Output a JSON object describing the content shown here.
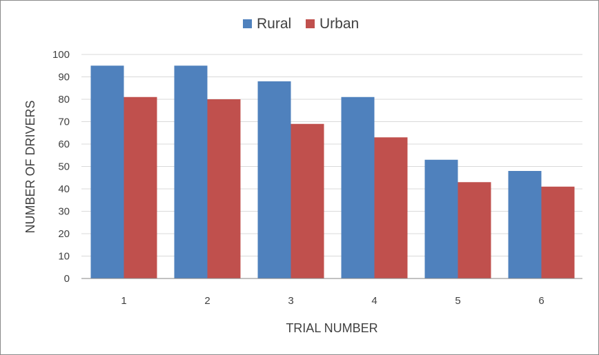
{
  "chart_data": {
    "type": "bar",
    "categories": [
      "1",
      "2",
      "3",
      "4",
      "5",
      "6"
    ],
    "series": [
      {
        "name": "Rural",
        "values": [
          95,
          95,
          88,
          81,
          53,
          48
        ],
        "color": "#4F81BD"
      },
      {
        "name": "Urban",
        "values": [
          81,
          80,
          69,
          63,
          43,
          41
        ],
        "color": "#C0504D"
      }
    ],
    "y_ticks": [
      "0",
      "10",
      "20",
      "30",
      "40",
      "50",
      "60",
      "70",
      "80",
      "90",
      "100"
    ],
    "xlabel": "TRIAL NUMBER",
    "ylabel": "NUMBER OF DRIVERS",
    "ylim": [
      0,
      100
    ],
    "grid": true,
    "legend_position": "top-center"
  }
}
